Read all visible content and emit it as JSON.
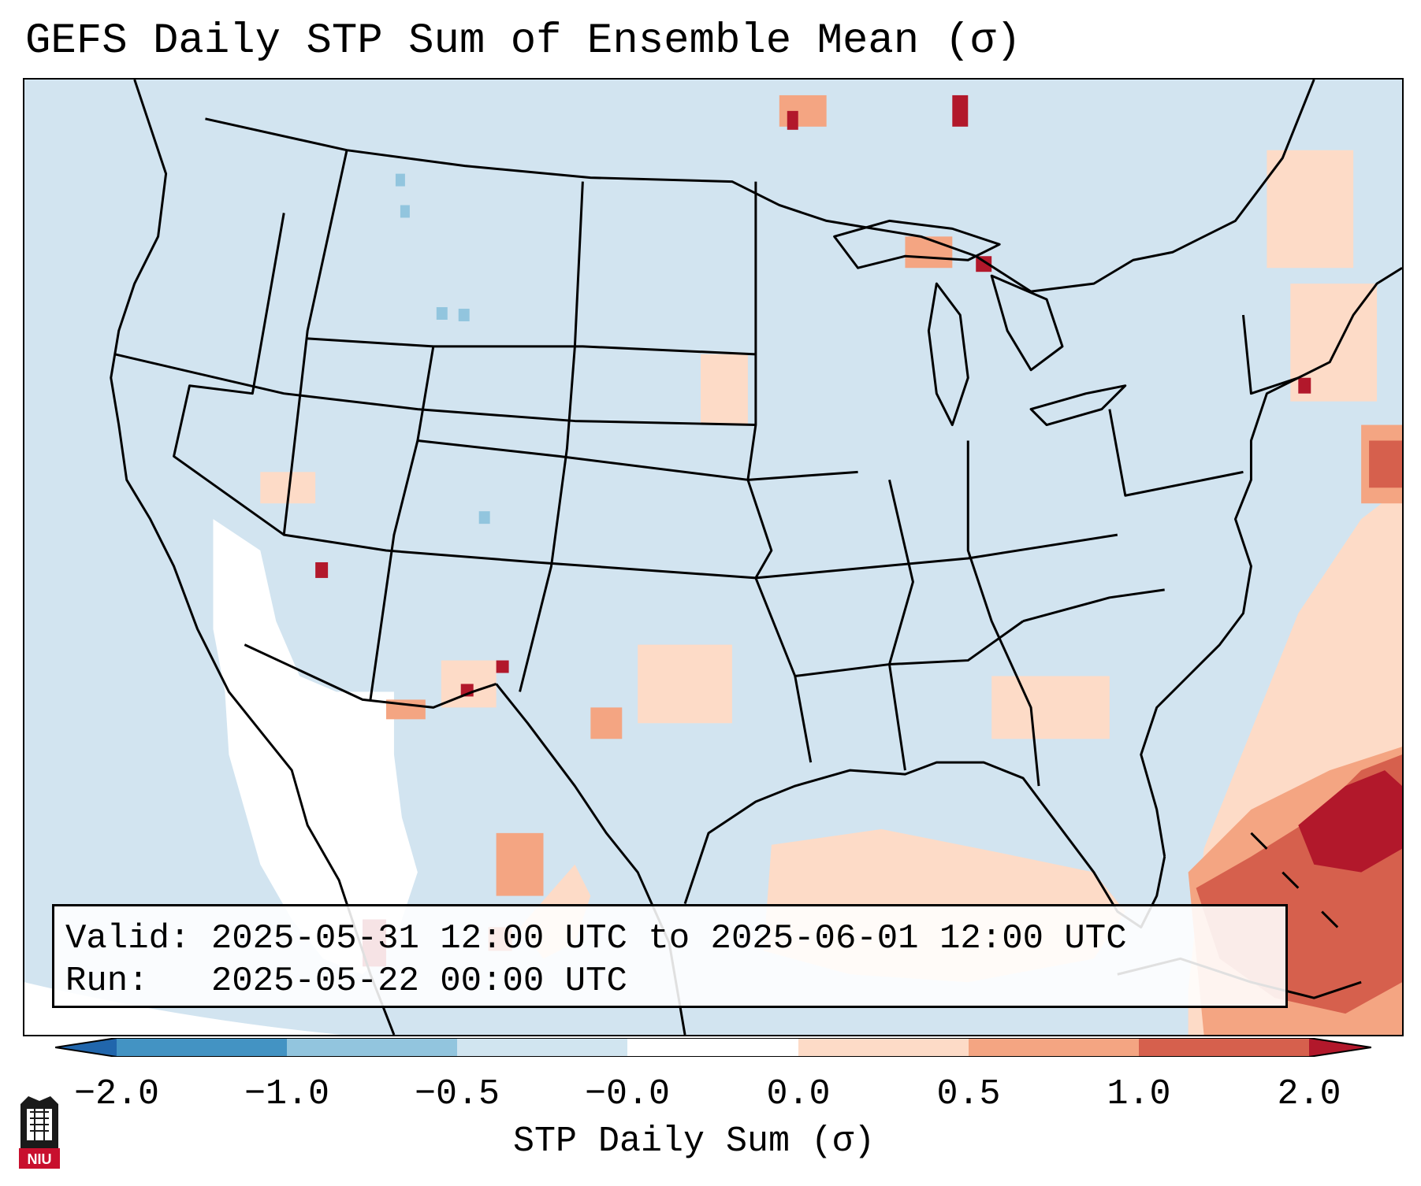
{
  "title": "GEFS Daily STP Sum of Ensemble Mean (σ)",
  "info": {
    "valid_line": "Valid: 2025-05-31 12:00 UTC to 2025-06-01 12:00 UTC",
    "run_line": "Run:   2025-05-22 00:00 UTC"
  },
  "colorbar": {
    "label": "STP Daily Sum (σ)",
    "ticks": [
      "−2.0",
      "−1.0",
      "−0.5",
      "−0.0",
      "0.0",
      "0.5",
      "1.0",
      "2.0"
    ],
    "bins": [
      {
        "range": "< -2.0",
        "color": "#2166ac"
      },
      {
        "range": "-2.0 to -1.0",
        "color": "#4393c3"
      },
      {
        "range": "-1.0 to -0.5",
        "color": "#92c5de"
      },
      {
        "range": "-0.5 to -0.0",
        "color": "#d1e5f0"
      },
      {
        "range": "-0.0 to 0.0",
        "color": "#ffffff"
      },
      {
        "range": "0.0 to 0.5",
        "color": "#fddbc7"
      },
      {
        "range": "0.5 to 1.0",
        "color": "#f4a582"
      },
      {
        "range": "1.0 to 2.0",
        "color": "#d6604d"
      },
      {
        "range": "> 2.0",
        "color": "#b2182b"
      }
    ]
  },
  "logo": {
    "text": "NIU"
  },
  "map": {
    "background_color": "#d2e4f0",
    "outside_color": "#ffffff",
    "border_color": "#000000"
  }
}
